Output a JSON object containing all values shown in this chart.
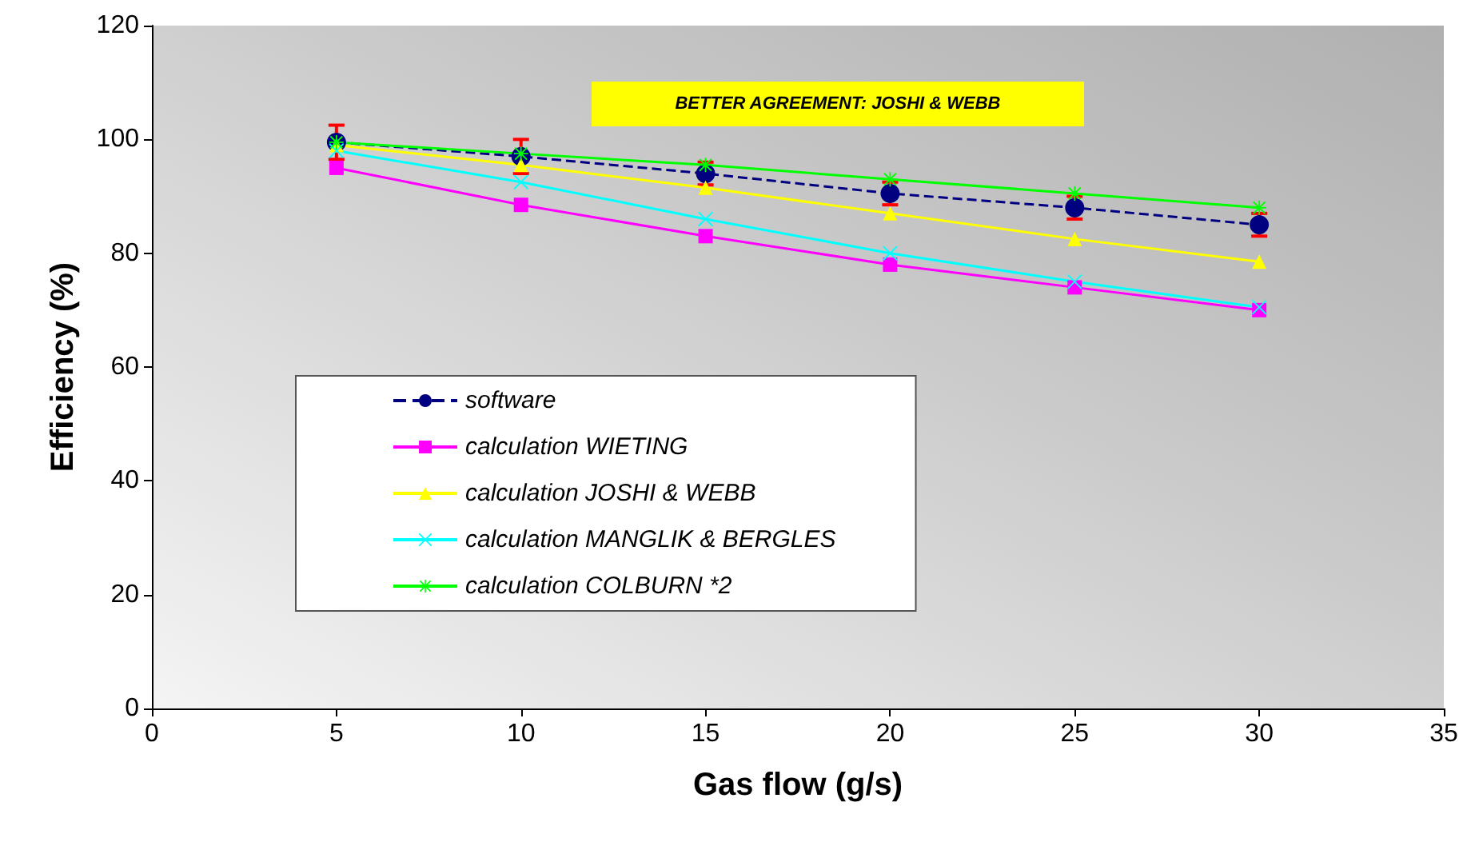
{
  "chart_data": {
    "type": "line",
    "xlabel": "Gas flow (g/s)",
    "ylabel": "Efficiency (%)",
    "x": [
      5,
      10,
      15,
      20,
      25,
      30
    ],
    "xlim": [
      0,
      35
    ],
    "xticks": [
      0,
      5,
      10,
      15,
      20,
      25,
      30,
      35
    ],
    "ylim": [
      0,
      120
    ],
    "yticks": [
      0,
      20,
      40,
      60,
      80,
      100,
      120
    ],
    "grid": false,
    "legend": "left",
    "annotations": [
      "BETTER AGREEMENT: JOSHI & WEBB"
    ],
    "series": [
      {
        "name": "software",
        "color": "#000080",
        "values": [
          99.5,
          97,
          94,
          90.5,
          88,
          85
        ],
        "errors": [
          3,
          3,
          2,
          2,
          2,
          2
        ],
        "marker": "circle",
        "line_style": "dashed"
      },
      {
        "name": "calculation WIETING",
        "color": "#ff00ff",
        "values": [
          95,
          88.5,
          83,
          78,
          74,
          70
        ],
        "marker": "square",
        "line_style": "solid"
      },
      {
        "name": "calculation JOSHI & WEBB",
        "color": "#ffff00",
        "values": [
          99,
          95.5,
          91.5,
          87,
          82.5,
          78.5
        ],
        "marker": "triangle",
        "line_style": "solid"
      },
      {
        "name": "calculation MANGLIK & BERGLES",
        "color": "#00ffff",
        "values": [
          98,
          92.5,
          86,
          80,
          75,
          70.5
        ],
        "marker": "cross",
        "line_style": "solid"
      },
      {
        "name": "calculation COLBURN *2",
        "color": "#00ff00",
        "values": [
          99.5,
          97.5,
          95.5,
          93,
          90.5,
          88
        ],
        "marker": "star",
        "line_style": "solid"
      }
    ]
  }
}
